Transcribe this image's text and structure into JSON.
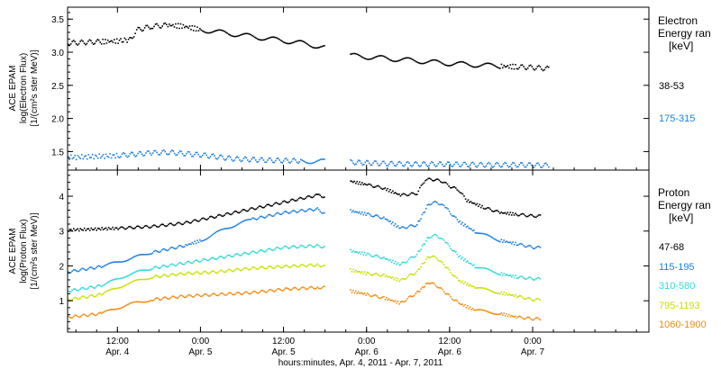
{
  "chart_data": [
    {
      "type": "scatter",
      "panel": "electron",
      "ylabel_lines": [
        "ACE EPAM",
        "log(Electron Flux)",
        "[1/(cm²s ster MeV)]"
      ],
      "ylim": [
        1.22,
        3.68
      ],
      "yticks": [
        1.5,
        2.0,
        2.5,
        3.0,
        3.5
      ],
      "ytick_labels": [
        "1.5",
        "2.0",
        "2.5",
        "3.0",
        "3.5"
      ],
      "legend_title_lines": [
        "Electron",
        "Energy ran",
        "[keV]"
      ],
      "series": [
        {
          "name": "38-53",
          "color": "#000000",
          "x": [
            2.2,
            2.4,
            2.5,
            2.57,
            2.62,
            2.7,
            2.8,
            2.9,
            3.0,
            3.15,
            3.3,
            3.45,
            3.6,
            3.75,
            3.7501,
            3.9,
            4.05,
            4.2,
            4.35,
            4.5,
            4.65,
            4.8,
            4.9,
            5.0,
            5.1
          ],
          "y": [
            3.15,
            3.17,
            3.18,
            3.2,
            3.35,
            3.4,
            3.42,
            3.4,
            3.35,
            3.3,
            3.25,
            3.2,
            3.15,
            3.08,
            null,
            2.96,
            2.93,
            2.9,
            2.87,
            2.84,
            2.82,
            2.8,
            2.79,
            2.78,
            2.76
          ],
          "gap_after_index": 13
        },
        {
          "name": "175-315",
          "color": "#1e80e0",
          "x": [
            2.2,
            2.5,
            2.7,
            2.8,
            3.0,
            3.2,
            3.4,
            3.6,
            3.75,
            3.7501,
            3.9,
            4.1,
            4.3,
            4.5,
            4.7,
            4.9,
            5.1
          ],
          "y": [
            1.42,
            1.45,
            1.49,
            1.5,
            1.46,
            1.4,
            1.38,
            1.37,
            1.36,
            null,
            1.35,
            1.33,
            1.32,
            1.32,
            1.31,
            1.31,
            1.3
          ],
          "gap_after_index": 8
        }
      ]
    },
    {
      "type": "scatter",
      "panel": "proton",
      "ylabel_lines": [
        "ACE EPAM",
        "log(Proton Flux)",
        "[1/(cm²s ster MeV)]"
      ],
      "ylim": [
        0.1,
        4.75
      ],
      "yticks": [
        1,
        2,
        3,
        4
      ],
      "ytick_labels": [
        "1",
        "2",
        "3",
        "4"
      ],
      "legend_title_lines": [
        "Proton",
        "Energy ran",
        "[keV]"
      ],
      "xlabel": "hours:minutes, Apr.  4, 2011 - Apr.  7, 2011",
      "xlim": [
        2.2,
        5.7
      ],
      "xticks": [
        2.5,
        3.0,
        3.5,
        4.0,
        4.5,
        5.0
      ],
      "xtick_labels": [
        [
          "12:00",
          "Apr. 4"
        ],
        [
          "0:00",
          "Apr. 5"
        ],
        [
          "12:00",
          "Apr. 5"
        ],
        [
          "0:00",
          "Apr. 6"
        ],
        [
          "12:00",
          "Apr. 6"
        ],
        [
          "0:00",
          "Apr. 7"
        ]
      ],
      "series": [
        {
          "name": "47-68",
          "color": "#000000",
          "x": [
            2.2,
            2.5,
            2.7,
            2.9,
            3.1,
            3.3,
            3.5,
            3.7,
            3.75,
            3.7501,
            3.9,
            4.0,
            4.1,
            4.2,
            4.3,
            4.35,
            4.4,
            4.45,
            4.5,
            4.55,
            4.6,
            4.7,
            4.8,
            4.9,
            5.0,
            5.05
          ],
          "y": [
            3.05,
            3.1,
            3.15,
            3.25,
            3.45,
            3.65,
            3.85,
            4.05,
            4.0,
            null,
            4.45,
            4.35,
            4.25,
            4.05,
            4.1,
            4.5,
            4.5,
            4.45,
            4.3,
            4.2,
            3.9,
            3.7,
            3.55,
            3.5,
            3.45,
            3.45
          ],
          "gap_after_index": 8
        },
        {
          "name": "115-195",
          "color": "#1e80e0",
          "x": [
            2.2,
            2.4,
            2.55,
            2.7,
            2.9,
            3.0,
            3.15,
            3.3,
            3.5,
            3.7,
            3.75,
            3.7501,
            3.9,
            4.0,
            4.1,
            4.2,
            4.3,
            4.37,
            4.42,
            4.47,
            4.55,
            4.65,
            4.8,
            4.9,
            5.0,
            5.05
          ],
          "y": [
            1.85,
            2.0,
            2.2,
            2.4,
            2.6,
            2.75,
            3.1,
            3.35,
            3.55,
            3.65,
            3.5,
            null,
            3.6,
            3.5,
            3.4,
            3.1,
            3.2,
            3.8,
            3.85,
            3.7,
            3.3,
            3.0,
            2.75,
            2.65,
            2.55,
            2.55
          ],
          "gap_after_index": 10
        },
        {
          "name": "310-580",
          "color": "#30d8d8",
          "x": [
            2.2,
            2.4,
            2.55,
            2.7,
            2.9,
            3.1,
            3.3,
            3.5,
            3.7,
            3.75,
            3.7501,
            3.9,
            4.0,
            4.1,
            4.2,
            4.3,
            4.37,
            4.42,
            4.47,
            4.55,
            4.65,
            4.8,
            4.9,
            5.0,
            5.05
          ],
          "y": [
            1.3,
            1.45,
            1.75,
            1.95,
            2.1,
            2.25,
            2.4,
            2.55,
            2.6,
            2.55,
            null,
            2.45,
            2.35,
            2.25,
            2.05,
            2.35,
            2.85,
            2.9,
            2.7,
            2.3,
            2.0,
            1.8,
            1.7,
            1.65,
            1.65
          ],
          "gap_after_index": 9
        },
        {
          "name": "795-1193",
          "color": "#c8e000",
          "x": [
            2.2,
            2.4,
            2.55,
            2.7,
            2.9,
            3.1,
            3.3,
            3.5,
            3.7,
            3.75,
            3.7501,
            3.9,
            4.0,
            4.1,
            4.2,
            4.3,
            4.37,
            4.42,
            4.47,
            4.55,
            4.65,
            4.8,
            4.9,
            5.0,
            5.05
          ],
          "y": [
            1.05,
            1.2,
            1.5,
            1.7,
            1.8,
            1.85,
            1.95,
            2.0,
            2.05,
            2.0,
            null,
            1.9,
            1.8,
            1.75,
            1.6,
            1.85,
            2.3,
            2.25,
            2.0,
            1.6,
            1.4,
            1.25,
            1.15,
            1.05,
            1.05
          ],
          "gap_after_index": 9
        },
        {
          "name": "1060-1900",
          "color": "#f08c10",
          "x": [
            2.2,
            2.4,
            2.55,
            2.7,
            2.9,
            3.1,
            3.3,
            3.5,
            3.7,
            3.75,
            3.7501,
            3.9,
            4.0,
            4.1,
            4.2,
            4.3,
            4.37,
            4.42,
            4.47,
            4.55,
            4.65,
            4.8,
            4.9,
            5.0,
            5.05
          ],
          "y": [
            0.55,
            0.65,
            0.9,
            1.05,
            1.15,
            1.2,
            1.25,
            1.35,
            1.4,
            1.4,
            null,
            1.3,
            1.2,
            1.1,
            0.95,
            1.25,
            1.55,
            1.45,
            1.25,
            0.95,
            0.75,
            0.65,
            0.55,
            0.5,
            0.5
          ],
          "gap_after_index": 9
        }
      ]
    }
  ]
}
